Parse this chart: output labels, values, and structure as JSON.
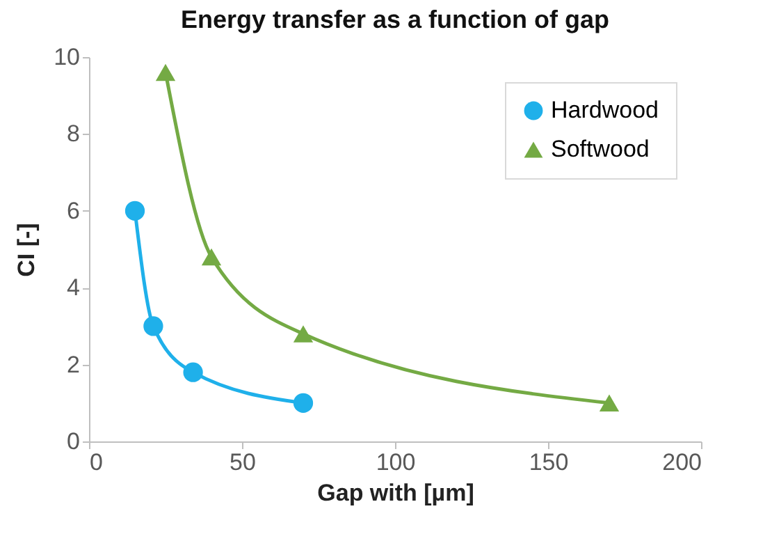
{
  "chart_data": {
    "type": "line",
    "title": "Energy transfer as a function of gap",
    "xlabel": "Gap with [µm]",
    "ylabel": "CI [-]",
    "series": [
      {
        "name": "Hardwood",
        "color": "#1fb0ea",
        "marker": "circle",
        "x": [
          15,
          21,
          34,
          70
        ],
        "values": [
          6,
          3,
          1.8,
          1
        ]
      },
      {
        "name": "Softwood",
        "color": "#74aa44",
        "marker": "triangle",
        "x": [
          25,
          40,
          70,
          170
        ],
        "values": [
          9.6,
          4.8,
          2.8,
          1
        ]
      }
    ],
    "xlim": [
      0,
      200
    ],
    "xticks": [
      0,
      50,
      100,
      150,
      200
    ],
    "ylim": [
      0,
      10
    ],
    "yticks": [
      0,
      2,
      4,
      6,
      8,
      10
    ],
    "grid": false,
    "legend": "top right"
  }
}
